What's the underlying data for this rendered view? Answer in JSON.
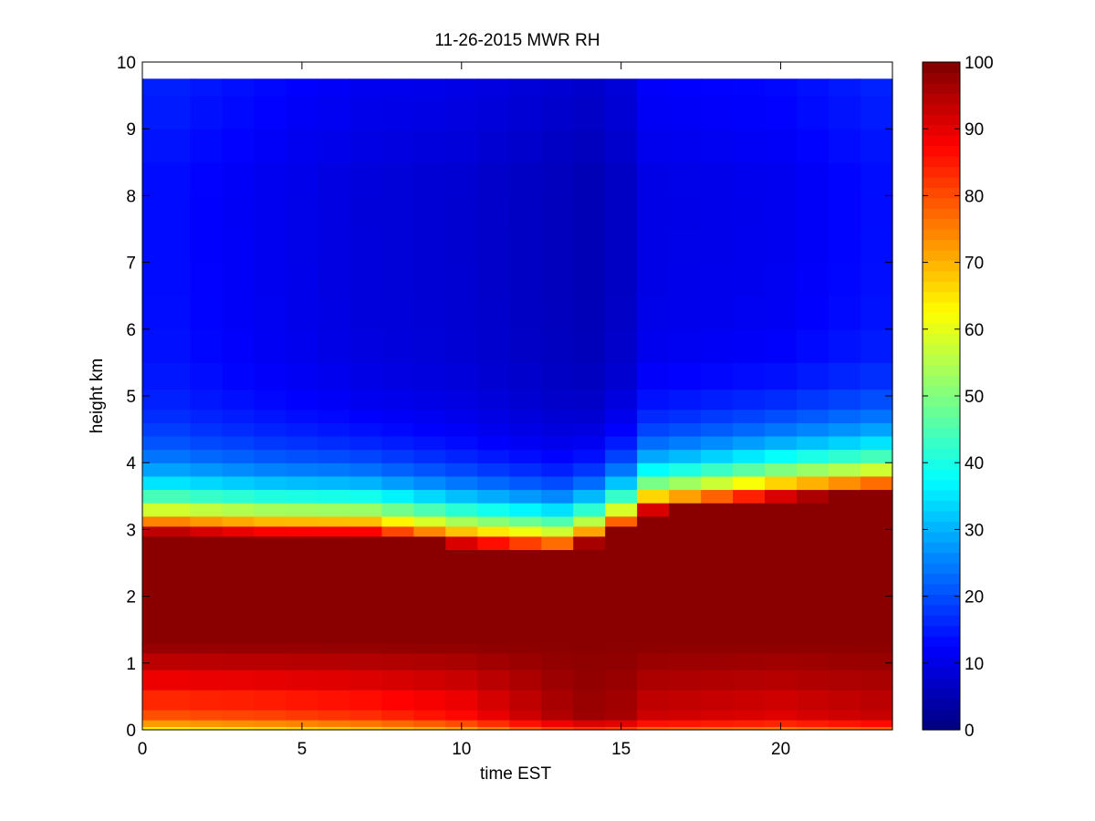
{
  "chart_data": {
    "type": "heatmap",
    "title": "11-26-2015 MWR RH",
    "xlabel": "time EST",
    "ylabel": "height km",
    "xlim": [
      0,
      23.5
    ],
    "ylim": [
      0,
      10
    ],
    "xticks": [
      0,
      5,
      10,
      15,
      20
    ],
    "yticks": [
      0,
      1,
      2,
      3,
      4,
      5,
      6,
      7,
      8,
      9,
      10
    ],
    "x_ticklabels": [
      "0",
      "5",
      "10",
      "15",
      "20"
    ],
    "y_ticklabels": [
      "0",
      "1",
      "2",
      "3",
      "4",
      "5",
      "6",
      "7",
      "8",
      "9",
      "10"
    ],
    "colormap": "jet",
    "colorbar": {
      "range": [
        0,
        100
      ],
      "ticks": [
        0,
        10,
        20,
        30,
        40,
        50,
        60,
        70,
        80,
        90,
        100
      ],
      "ticklabels": [
        "0",
        "10",
        "20",
        "30",
        "40",
        "50",
        "60",
        "70",
        "80",
        "90",
        "100"
      ]
    },
    "data_height_top_km": 9.75,
    "time_hours": [
      0,
      1.5,
      2.5,
      3.5,
      4.5,
      5.5,
      6.5,
      7.5,
      8.5,
      9.5,
      10.5,
      11.5,
      12.5,
      13.5,
      14.5,
      15.5,
      16.5,
      17.5,
      18.5,
      19.5,
      20.5,
      21.5,
      22.5,
      23.5
    ],
    "height_profile_km": [
      0,
      0.05,
      0.15,
      0.3,
      0.6,
      0.9,
      1.15,
      1.3,
      1.5,
      1.7,
      2.0,
      2.4,
      2.7,
      2.9,
      3.05,
      3.2,
      3.4,
      3.6,
      3.8,
      4.0,
      4.2,
      4.4,
      4.6,
      4.8,
      5.1,
      5.5,
      6.0,
      6.5,
      7.0,
      7.5,
      8.0,
      8.5,
      9.0,
      9.5,
      9.75
    ],
    "rh_profiles": [
      {
        "t": 0,
        "top_of_moist_layer_km": 3.2,
        "max_rh": 99,
        "near_surface_rh": 78,
        "upper_rh": 14
      },
      {
        "t": 4,
        "top_of_moist_layer_km": 3.15,
        "max_rh": 99,
        "near_surface_rh": 80,
        "upper_rh": 11
      },
      {
        "t": 7,
        "top_of_moist_layer_km": 3.15,
        "max_rh": 99,
        "near_surface_rh": 82,
        "upper_rh": 9
      },
      {
        "t": 10,
        "top_of_moist_layer_km": 3.0,
        "max_rh": 99,
        "near_surface_rh": 86,
        "upper_rh": 8
      },
      {
        "t": 13,
        "top_of_moist_layer_km": 2.9,
        "max_rh": 99,
        "near_surface_rh": 95,
        "upper_rh": 6
      },
      {
        "t": 14.5,
        "top_of_moist_layer_km": 3.1,
        "max_rh": 99,
        "near_surface_rh": 98,
        "upper_rh": 5
      },
      {
        "t": 16,
        "top_of_moist_layer_km": 3.5,
        "max_rh": 99,
        "near_surface_rh": 92,
        "upper_rh": 10
      },
      {
        "t": 20,
        "top_of_moist_layer_km": 3.7,
        "max_rh": 99,
        "near_surface_rh": 90,
        "upper_rh": 11
      },
      {
        "t": 23.5,
        "top_of_moist_layer_km": 3.8,
        "max_rh": 99,
        "near_surface_rh": 93,
        "upper_rh": 14
      }
    ]
  }
}
